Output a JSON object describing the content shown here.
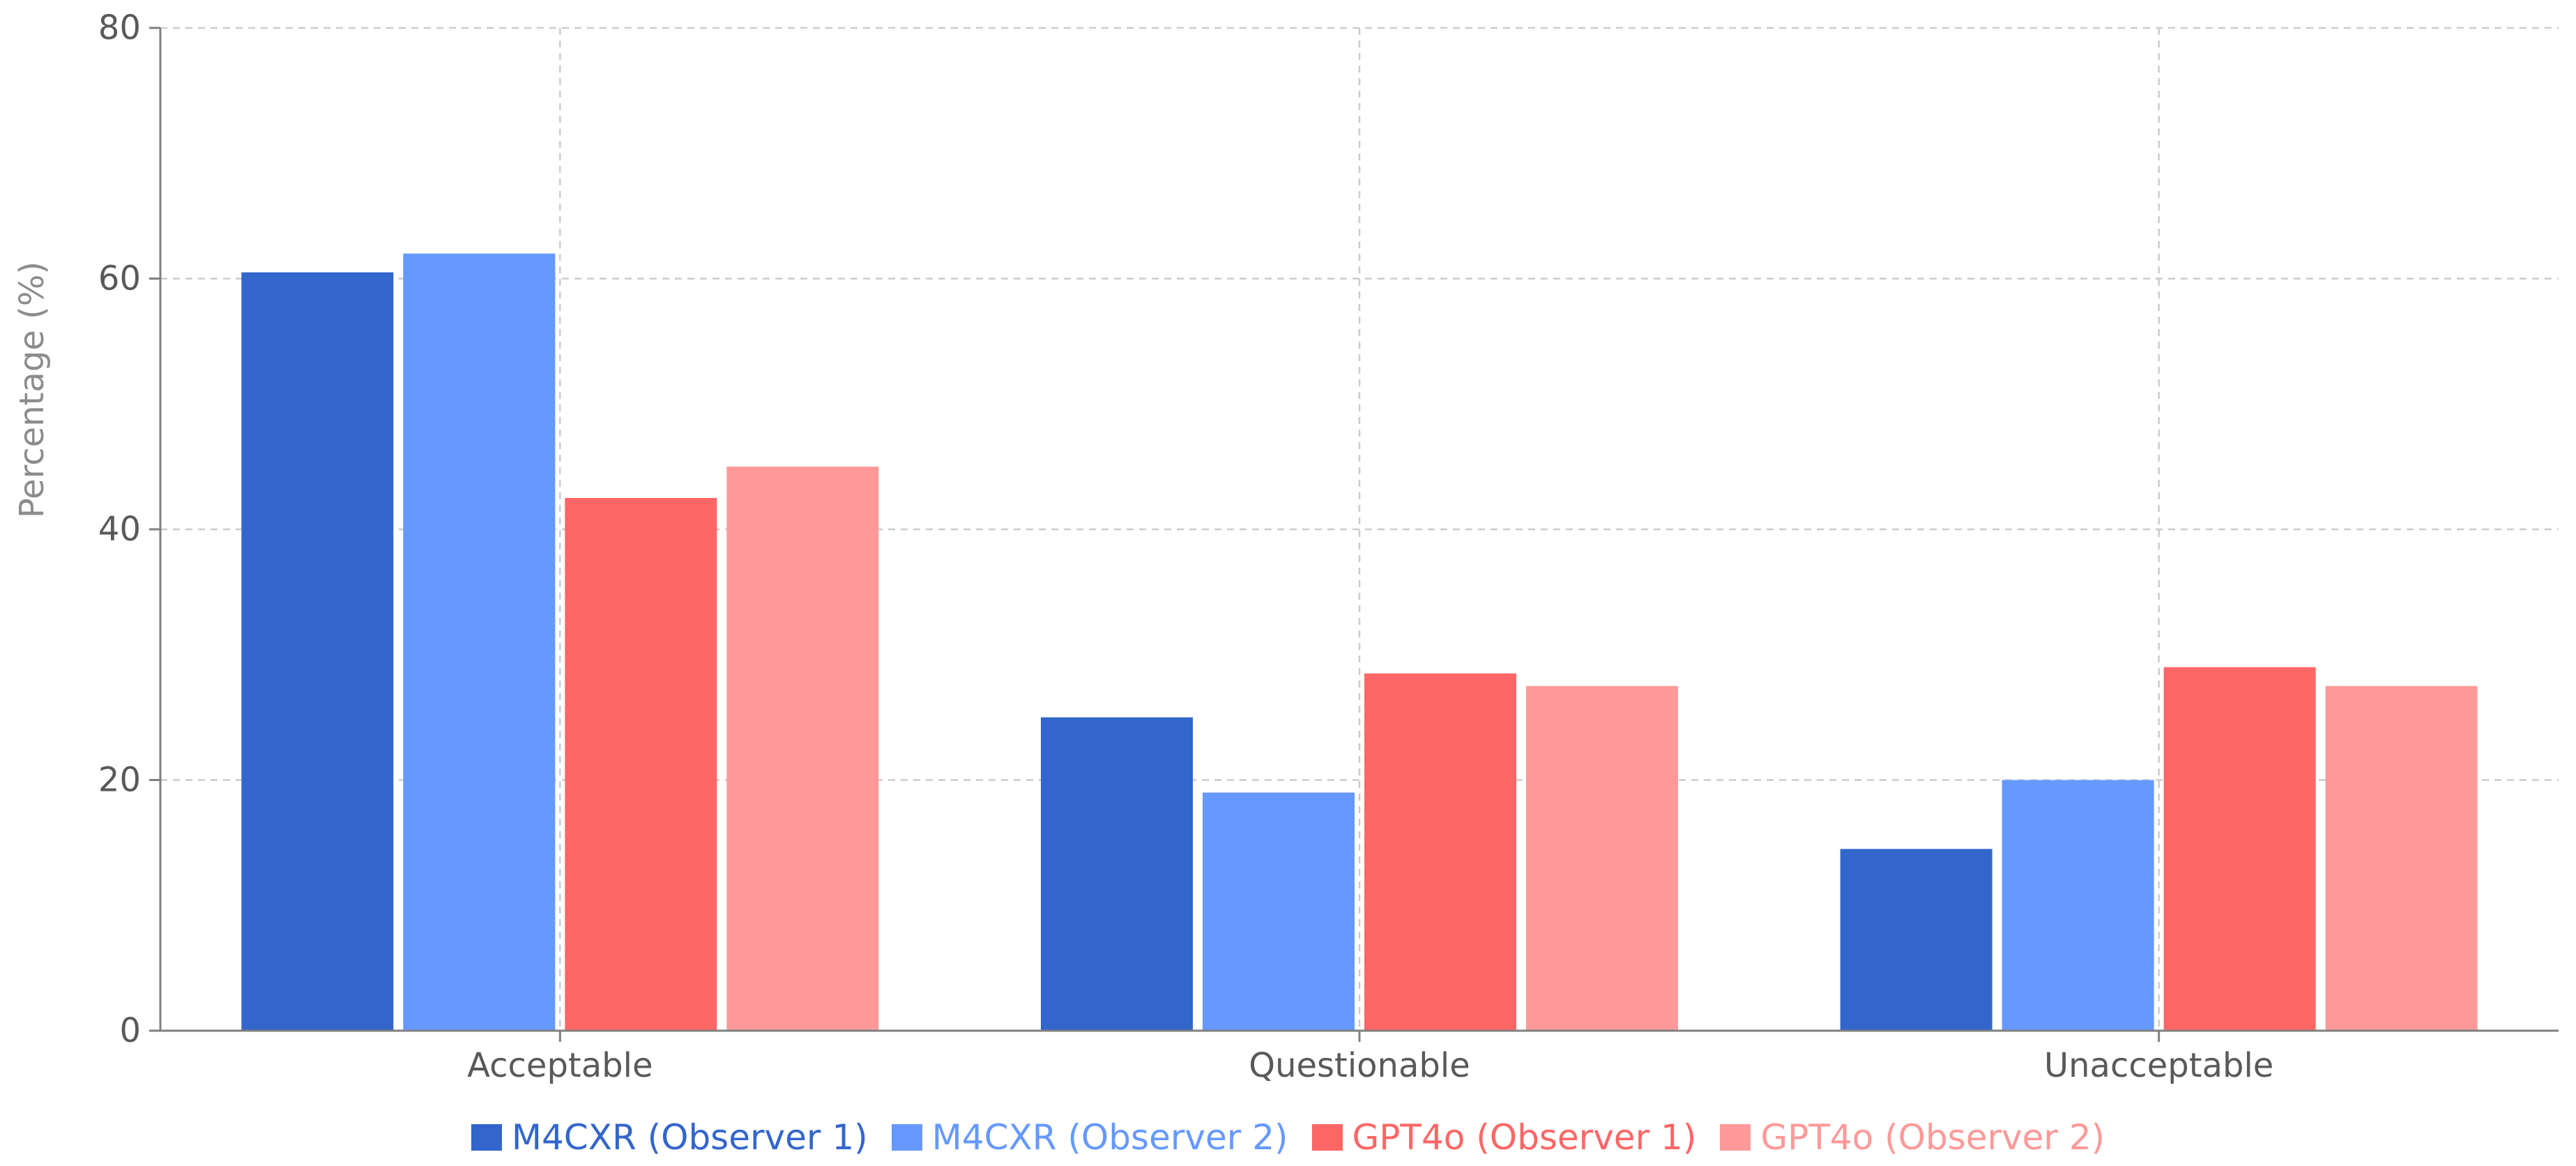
{
  "chart_data": {
    "type": "bar",
    "title": "",
    "xlabel": "",
    "ylabel": "Percentage (%)",
    "ylim": [
      0,
      80
    ],
    "yticks": [
      0,
      20,
      40,
      60,
      80
    ],
    "grid": true,
    "legend_position": "bottom",
    "categories": [
      "Acceptable",
      "Questionable",
      "Unacceptable"
    ],
    "series": [
      {
        "name": "M4CXR (Observer 1)",
        "color": "#3366cc",
        "values": [
          60.5,
          25.0,
          14.5
        ]
      },
      {
        "name": "M4CXR (Observer 2)",
        "color": "#6699ff",
        "values": [
          62.0,
          19.0,
          20.0
        ]
      },
      {
        "name": "GPT4o (Observer 1)",
        "color": "#ff6666",
        "values": [
          42.5,
          28.5,
          29.0
        ]
      },
      {
        "name": "GPT4o (Observer 2)",
        "color": "#ff9999",
        "values": [
          45.0,
          27.5,
          27.5
        ]
      }
    ]
  }
}
